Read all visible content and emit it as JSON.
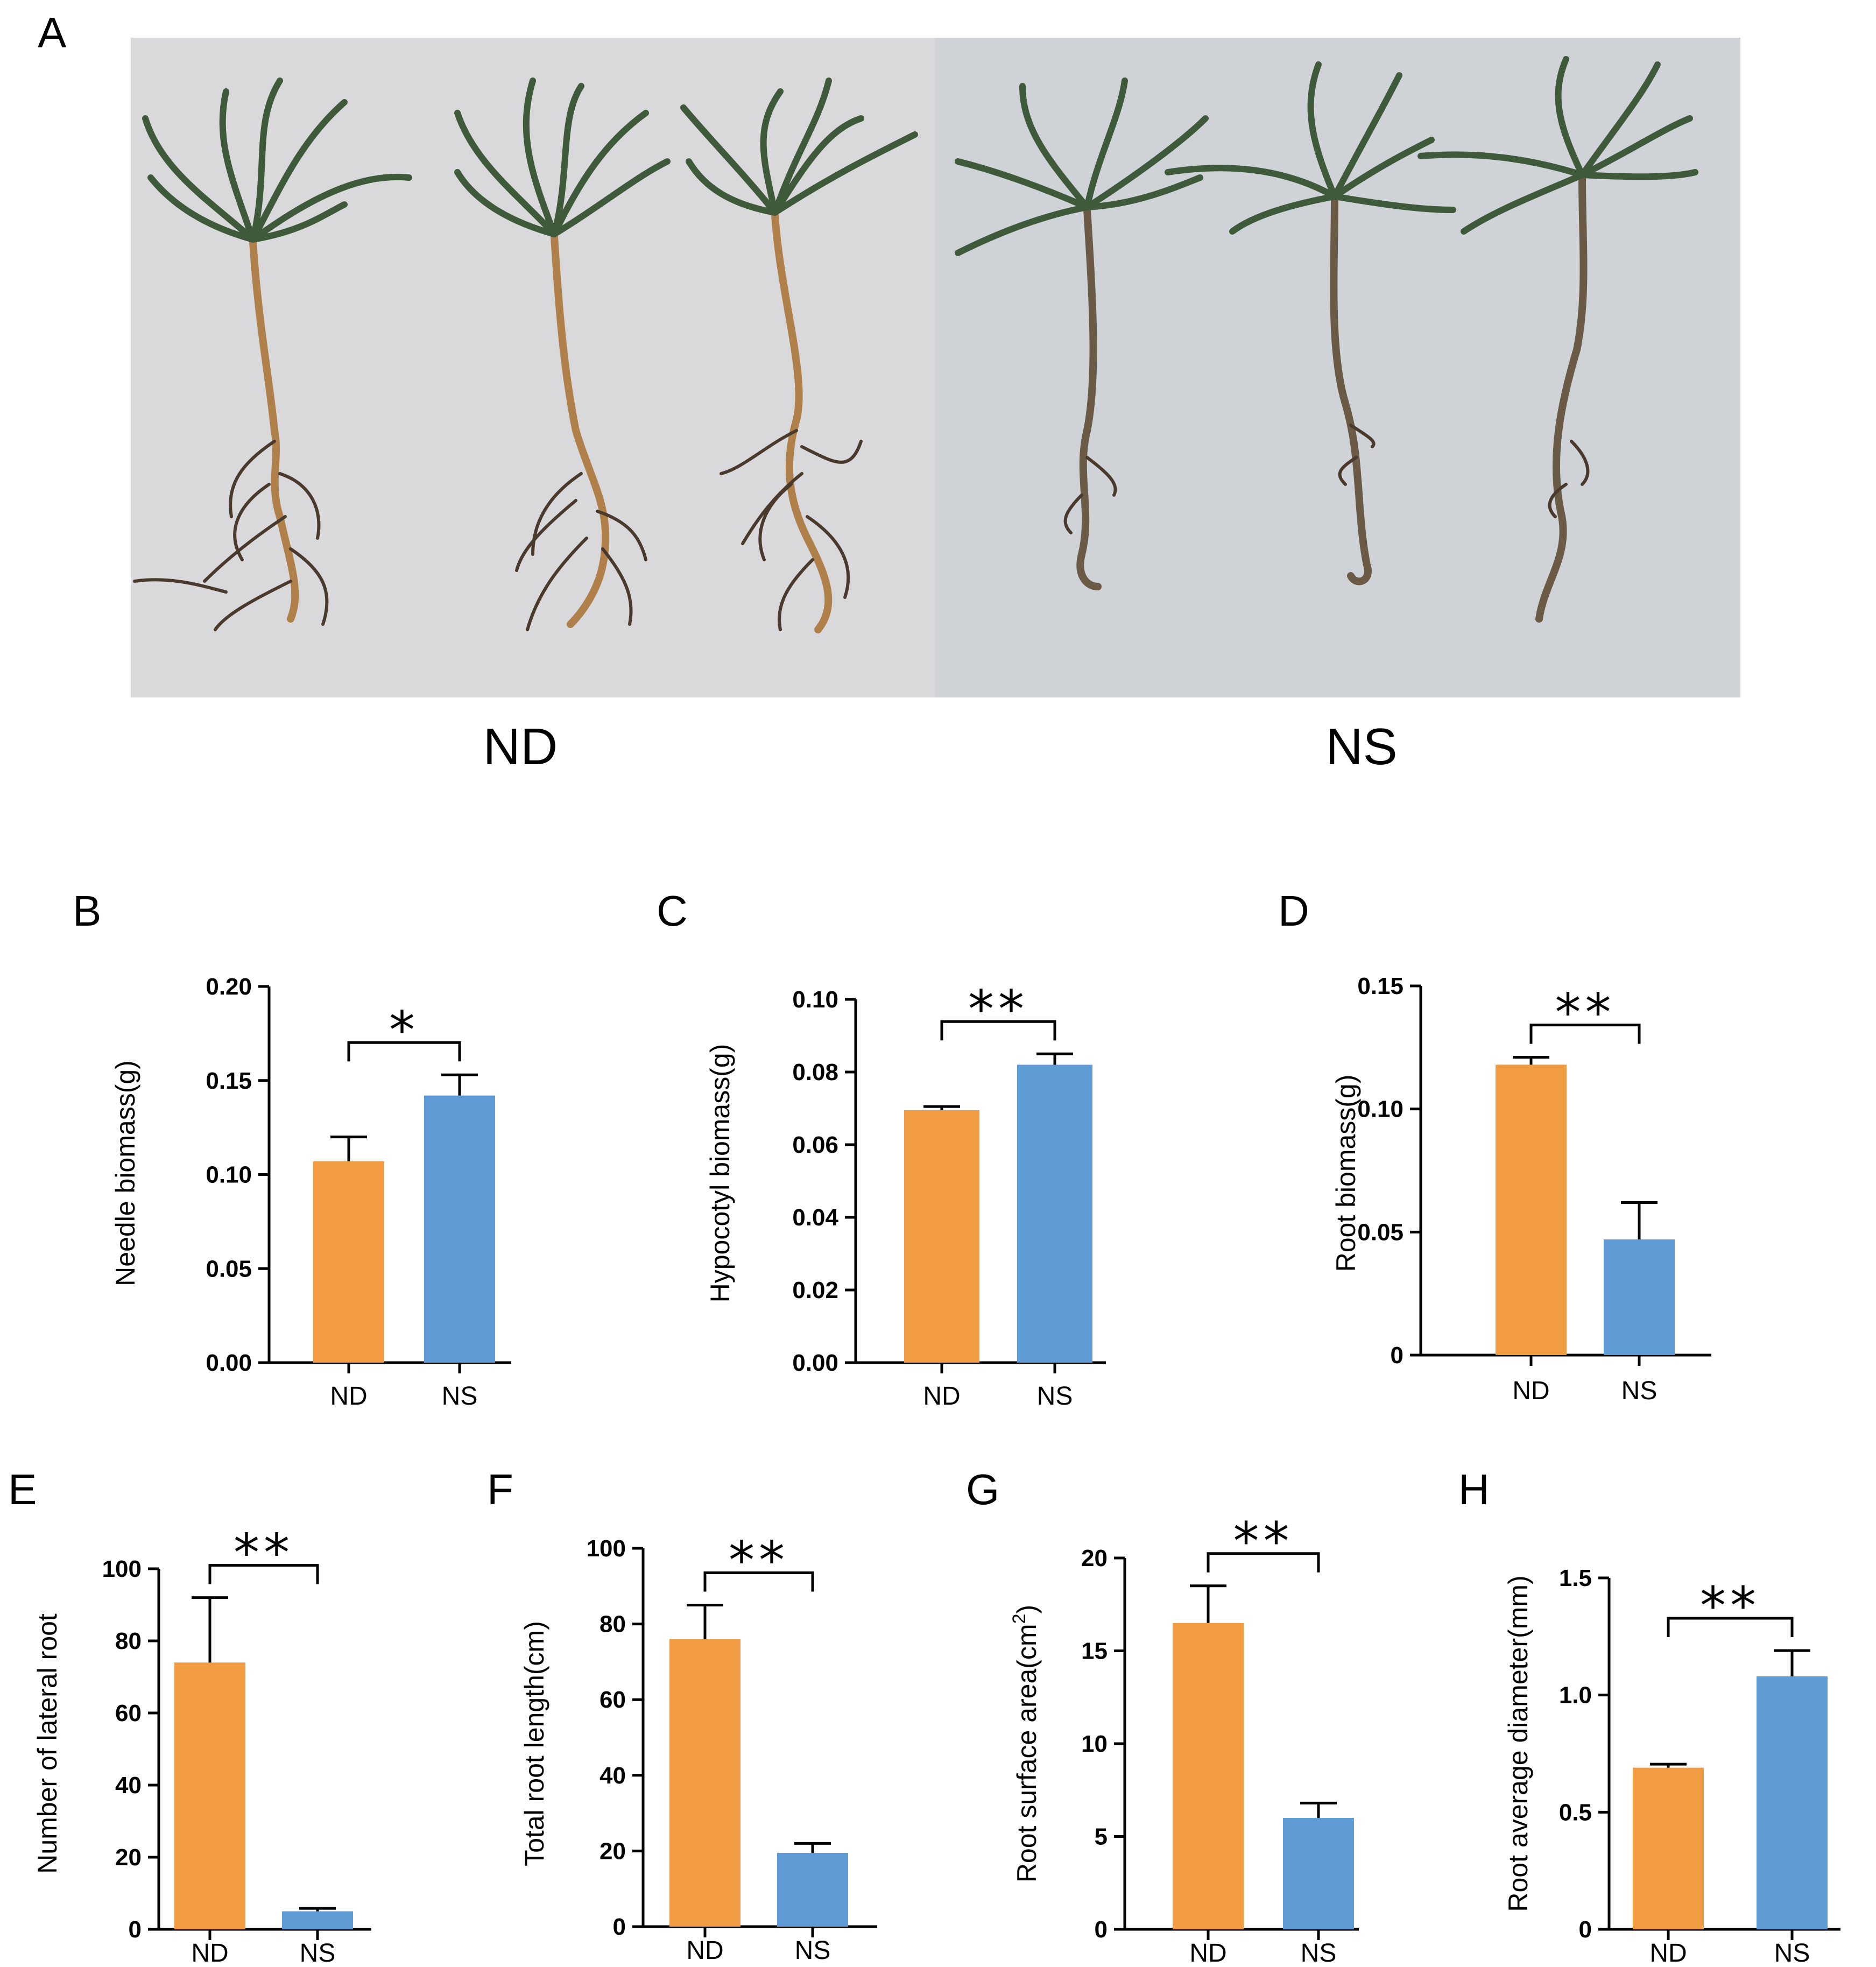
{
  "photo_panel": {
    "letter": "A",
    "groups": [
      "ND",
      "NS"
    ],
    "colors": {
      "paper_left": "#d9d9dc",
      "paper_right": "#cfd3d8",
      "needles": "#3f5a3a",
      "stem": "#b0804a",
      "root": "#4a3a2e"
    }
  },
  "colors": {
    "ND": "#f19b42",
    "NS": "#5f9bd5",
    "axis": "#000000"
  },
  "chart_data": [
    {
      "id": "B",
      "type": "bar",
      "categories": [
        "ND",
        "NS"
      ],
      "values": [
        0.107,
        0.142
      ],
      "errors": [
        0.013,
        0.011
      ],
      "ylabel": "Needle biomass(g)",
      "ylim": [
        0,
        0.2
      ],
      "ticks": [
        "0.00",
        "0.05",
        "0.10",
        "0.15",
        "0.20"
      ],
      "tick_values": [
        0,
        0.05,
        0.1,
        0.15,
        0.2
      ],
      "significance": "*"
    },
    {
      "id": "C",
      "type": "bar",
      "categories": [
        "ND",
        "NS"
      ],
      "values": [
        0.0695,
        0.082
      ],
      "errors": [
        0.001,
        0.003
      ],
      "ylabel": "Hypocotyl biomass(g)",
      "ylim": [
        0,
        0.1
      ],
      "ticks": [
        "0.00",
        "0.02",
        "0.04",
        "0.06",
        "0.08",
        "0.10"
      ],
      "tick_values": [
        0,
        0.02,
        0.04,
        0.06,
        0.08,
        0.1
      ],
      "significance": "**"
    },
    {
      "id": "D",
      "type": "bar",
      "categories": [
        "ND",
        "NS"
      ],
      "values": [
        0.118,
        0.047
      ],
      "errors": [
        0.003,
        0.015
      ],
      "ylabel": "Root biomass(g)",
      "ylim": [
        0,
        0.15
      ],
      "ticks": [
        "0",
        "0.05",
        "0.10",
        "0.15"
      ],
      "tick_values": [
        0,
        0.05,
        0.1,
        0.15
      ],
      "significance": "**"
    },
    {
      "id": "E",
      "type": "bar",
      "categories": [
        "ND",
        "NS"
      ],
      "values": [
        74,
        5
      ],
      "errors": [
        18,
        0.8
      ],
      "ylabel": "Number of lateral root",
      "ylim": [
        0,
        100
      ],
      "ticks": [
        "0",
        "20",
        "40",
        "60",
        "80",
        "100"
      ],
      "tick_values": [
        0,
        20,
        40,
        60,
        80,
        100
      ],
      "significance": "**"
    },
    {
      "id": "F",
      "type": "bar",
      "categories": [
        "ND",
        "NS"
      ],
      "values": [
        76,
        19.5
      ],
      "errors": [
        9,
        2.5
      ],
      "ylabel": "Total root length(cm)",
      "ylim": [
        0,
        100
      ],
      "ticks": [
        "0",
        "20",
        "40",
        "60",
        "80",
        "100"
      ],
      "tick_values": [
        0,
        20,
        40,
        60,
        80,
        100
      ],
      "significance": "**"
    },
    {
      "id": "G",
      "type": "bar",
      "categories": [
        "ND",
        "NS"
      ],
      "values": [
        16.5,
        6
      ],
      "errors": [
        2,
        0.8
      ],
      "ylabel": "Root surface area(cm",
      "ylabel_sup": "2",
      "ylabel_end": ")",
      "ylim": [
        0,
        20
      ],
      "ticks": [
        "0",
        "5",
        "10",
        "15",
        "20"
      ],
      "tick_values": [
        0,
        5,
        10,
        15,
        20
      ],
      "significance": "**"
    },
    {
      "id": "H",
      "type": "bar",
      "categories": [
        "ND",
        "NS"
      ],
      "values": [
        0.69,
        1.08
      ],
      "errors": [
        0.015,
        0.11
      ],
      "ylabel": "Root average diameter(mm)",
      "ylim": [
        0,
        1.5
      ],
      "ticks": [
        "0",
        "0.5",
        "1.0",
        "1.5"
      ],
      "tick_values": [
        0,
        0.5,
        1.0,
        1.5
      ],
      "significance": "**"
    }
  ]
}
